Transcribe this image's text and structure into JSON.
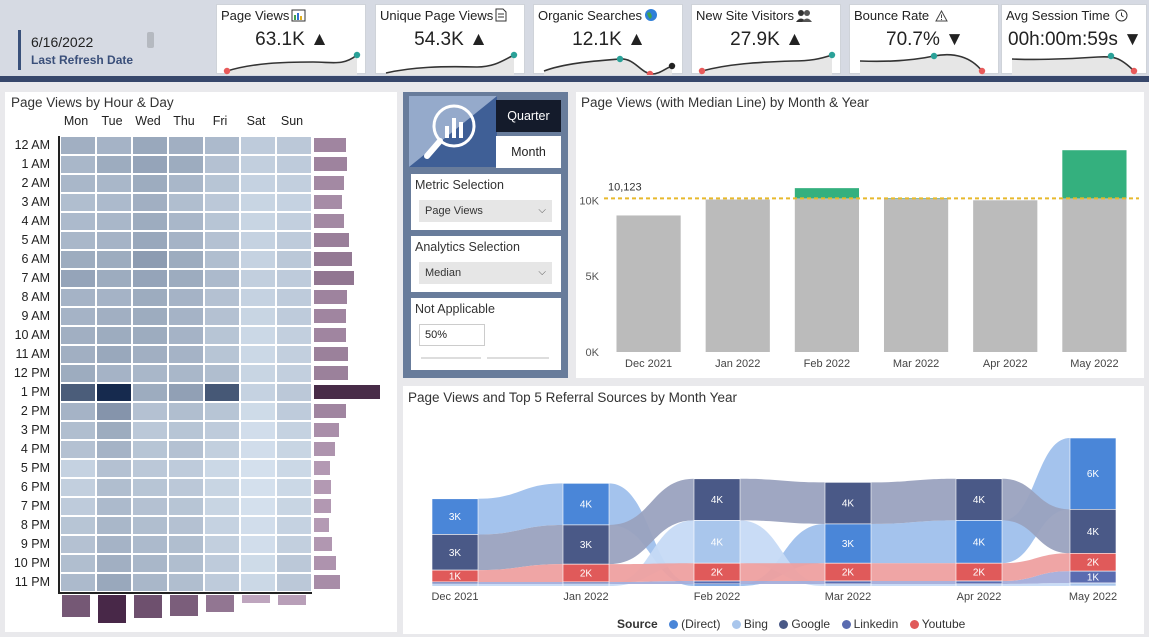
{
  "header": {
    "refresh_date": "6/16/2022",
    "refresh_label": "Last Refresh Date"
  },
  "kpis": [
    {
      "title": "Page Views",
      "icon": "bar-chart-icon",
      "value": "63.1K",
      "trend": "up",
      "arrow": "▲"
    },
    {
      "title": "Unique Page Views",
      "icon": "document-icon",
      "value": "54.3K",
      "trend": "up",
      "arrow": "▲"
    },
    {
      "title": "Organic Searches",
      "icon": "globe-icon",
      "value": "12.1K",
      "trend": "up",
      "arrow": "▲"
    },
    {
      "title": "New Site Visitors",
      "icon": "people-icon",
      "value": "27.9K",
      "trend": "up",
      "arrow": "▲"
    },
    {
      "title": "Bounce Rate",
      "icon": "warning-icon",
      "value": "70.7%",
      "trend": "down",
      "arrow": "▼"
    },
    {
      "title": "Avg Session Time",
      "icon": "clock-icon",
      "value": "00h:00m:59s",
      "trend": "down",
      "arrow": "▼"
    }
  ],
  "heatmap": {
    "title": "Page Views by Hour & Day",
    "days": [
      "Mon",
      "Tue",
      "Wed",
      "Thu",
      "Fri",
      "Sat",
      "Sun"
    ],
    "hours": [
      "12 AM",
      "1 AM",
      "2 AM",
      "3 AM",
      "4 AM",
      "5 AM",
      "6 AM",
      "7 AM",
      "8 AM",
      "9 AM",
      "10 AM",
      "11 AM",
      "12 PM",
      "1 PM",
      "2 PM",
      "3 PM",
      "4 PM",
      "5 PM",
      "6 PM",
      "7 PM",
      "8 PM",
      "9 PM",
      "10 PM",
      "11 PM"
    ],
    "intensity": [
      [
        0.38,
        0.36,
        0.42,
        0.38,
        0.32,
        0.22,
        0.24
      ],
      [
        0.34,
        0.4,
        0.44,
        0.4,
        0.28,
        0.2,
        0.22
      ],
      [
        0.34,
        0.34,
        0.4,
        0.34,
        0.26,
        0.18,
        0.2
      ],
      [
        0.3,
        0.32,
        0.38,
        0.3,
        0.24,
        0.16,
        0.18
      ],
      [
        0.32,
        0.34,
        0.4,
        0.34,
        0.26,
        0.16,
        0.2
      ],
      [
        0.34,
        0.36,
        0.42,
        0.36,
        0.28,
        0.18,
        0.22
      ],
      [
        0.4,
        0.4,
        0.48,
        0.4,
        0.3,
        0.18,
        0.24
      ],
      [
        0.44,
        0.4,
        0.44,
        0.4,
        0.32,
        0.2,
        0.22
      ],
      [
        0.36,
        0.36,
        0.4,
        0.36,
        0.28,
        0.18,
        0.22
      ],
      [
        0.36,
        0.38,
        0.4,
        0.36,
        0.28,
        0.16,
        0.22
      ],
      [
        0.38,
        0.4,
        0.4,
        0.36,
        0.26,
        0.14,
        0.2
      ],
      [
        0.38,
        0.42,
        0.38,
        0.36,
        0.26,
        0.14,
        0.2
      ],
      [
        0.4,
        0.36,
        0.34,
        0.34,
        0.3,
        0.16,
        0.2
      ],
      [
        0.78,
        1.0,
        0.4,
        0.46,
        0.8,
        0.18,
        0.24
      ],
      [
        0.36,
        0.52,
        0.28,
        0.3,
        0.26,
        0.12,
        0.22
      ],
      [
        0.3,
        0.4,
        0.24,
        0.26,
        0.22,
        0.1,
        0.18
      ],
      [
        0.28,
        0.36,
        0.26,
        0.28,
        0.2,
        0.1,
        0.16
      ],
      [
        0.18,
        0.28,
        0.24,
        0.22,
        0.14,
        0.08,
        0.14
      ],
      [
        0.2,
        0.3,
        0.26,
        0.24,
        0.16,
        0.08,
        0.14
      ],
      [
        0.22,
        0.32,
        0.28,
        0.26,
        0.16,
        0.08,
        0.16
      ],
      [
        0.26,
        0.34,
        0.3,
        0.28,
        0.18,
        0.1,
        0.18
      ],
      [
        0.28,
        0.36,
        0.32,
        0.3,
        0.2,
        0.1,
        0.2
      ],
      [
        0.3,
        0.38,
        0.34,
        0.3,
        0.22,
        0.12,
        0.24
      ],
      [
        0.32,
        0.42,
        0.34,
        0.3,
        0.22,
        0.14,
        0.24
      ]
    ],
    "row_totals": [
      0.48,
      0.5,
      0.45,
      0.42,
      0.45,
      0.53,
      0.58,
      0.6,
      0.5,
      0.48,
      0.48,
      0.52,
      0.52,
      1.0,
      0.48,
      0.38,
      0.32,
      0.24,
      0.25,
      0.26,
      0.22,
      0.28,
      0.33,
      0.4
    ],
    "col_totals": [
      0.78,
      1.0,
      0.82,
      0.75,
      0.62,
      0.3,
      0.35
    ]
  },
  "slicers": {
    "toggle_quarter": "Quarter",
    "toggle_month": "Month",
    "metric_title": "Metric Selection",
    "metric_value": "Page Views",
    "analytics_title": "Analytics Selection",
    "analytics_value": "Median",
    "na_title": "Not Applicable",
    "na_value": "50%"
  },
  "bar_chart": {
    "title": "Page Views (with Median Line) by Month & Year"
  },
  "ribbon": {
    "title": "Page Views and Top 5 Referral Sources by Month Year",
    "legend_title": "Source",
    "sources": [
      {
        "name": "(Direct)",
        "color": "#4a86d8"
      },
      {
        "name": "Bing",
        "color": "#a9c6ec"
      },
      {
        "name": "Google",
        "color": "#4a5987"
      },
      {
        "name": "Linkedin",
        "color": "#5a6cb0"
      },
      {
        "name": "Youtube",
        "color": "#e05a5a"
      }
    ]
  },
  "chart_data": [
    {
      "type": "bar",
      "title": "Page Views (with Median Line) by Month & Year",
      "categories": [
        "Dec 2021",
        "Jan 2022",
        "Feb 2022",
        "Mar 2022",
        "Apr 2022",
        "May 2022"
      ],
      "values": [
        9000,
        10050,
        10800,
        10150,
        10000,
        13300
      ],
      "median": 10123,
      "median_label": "10,123",
      "ylim": [
        0,
        14500
      ],
      "yticks": [
        0,
        5000,
        10000
      ],
      "ytick_labels": [
        "0K",
        "5K",
        "10K"
      ],
      "colors": {
        "base": "#bbbbbb",
        "above": "#34b07e",
        "median": "#e8b92c"
      }
    },
    {
      "type": "area",
      "subtype": "ribbon",
      "title": "Page Views and Top 5 Referral Sources by Month Year",
      "categories": [
        "Dec 2021",
        "Jan 2022",
        "Feb 2022",
        "Mar 2022",
        "Apr 2022",
        "May 2022"
      ],
      "stacks": [
        [
          {
            "source": "(Direct)",
            "value": 3000,
            "label": "3K"
          },
          {
            "source": "Google",
            "value": 3000,
            "label": "3K"
          },
          {
            "source": "Youtube",
            "value": 1000,
            "label": "1K"
          },
          {
            "source": "Linkedin",
            "value": 150,
            "label": ""
          },
          {
            "source": "Bing",
            "value": 150,
            "label": ""
          }
        ],
        [
          {
            "source": "(Direct)",
            "value": 3500,
            "label": "4K"
          },
          {
            "source": "Google",
            "value": 3300,
            "label": "3K"
          },
          {
            "source": "Youtube",
            "value": 1500,
            "label": "2K"
          },
          {
            "source": "Linkedin",
            "value": 150,
            "label": ""
          },
          {
            "source": "Bing",
            "value": 150,
            "label": ""
          }
        ],
        [
          {
            "source": "Google",
            "value": 3500,
            "label": "4K"
          },
          {
            "source": "Bing",
            "value": 3600,
            "label": "4K"
          },
          {
            "source": "Youtube",
            "value": 1500,
            "label": "2K"
          },
          {
            "source": "Linkedin",
            "value": 250,
            "label": ""
          },
          {
            "source": "(Direct)",
            "value": 150,
            "label": ""
          }
        ],
        [
          {
            "source": "Google",
            "value": 3500,
            "label": "4K"
          },
          {
            "source": "(Direct)",
            "value": 3300,
            "label": "3K"
          },
          {
            "source": "Youtube",
            "value": 1500,
            "label": "2K"
          },
          {
            "source": "Linkedin",
            "value": 250,
            "label": ""
          },
          {
            "source": "Bing",
            "value": 150,
            "label": ""
          }
        ],
        [
          {
            "source": "Google",
            "value": 3500,
            "label": "4K"
          },
          {
            "source": "(Direct)",
            "value": 3600,
            "label": "4K"
          },
          {
            "source": "Youtube",
            "value": 1500,
            "label": "2K"
          },
          {
            "source": "Linkedin",
            "value": 250,
            "label": ""
          },
          {
            "source": "Bing",
            "value": 150,
            "label": ""
          }
        ],
        [
          {
            "source": "(Direct)",
            "value": 6000,
            "label": "6K"
          },
          {
            "source": "Google",
            "value": 3700,
            "label": "4K"
          },
          {
            "source": "Youtube",
            "value": 1500,
            "label": "2K"
          },
          {
            "source": "Linkedin",
            "value": 1000,
            "label": "1K"
          },
          {
            "source": "Bing",
            "value": 250,
            "label": ""
          }
        ]
      ]
    }
  ]
}
